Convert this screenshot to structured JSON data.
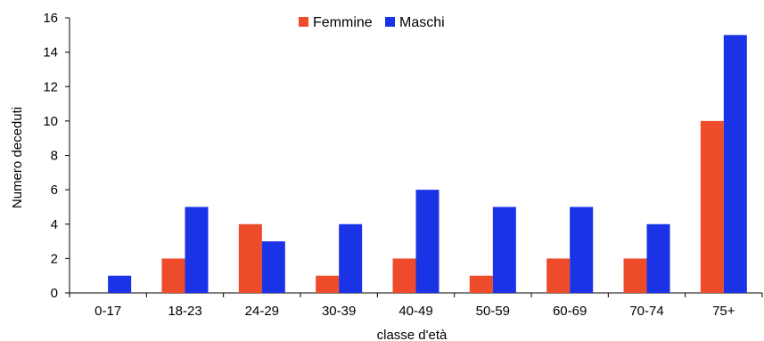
{
  "chart_data": {
    "type": "bar",
    "title": "",
    "xlabel": "classe d'età",
    "ylabel": "Numero deceduti",
    "categories": [
      "0-17",
      "18-23",
      "24-29",
      "30-39",
      "40-49",
      "50-59",
      "60-69",
      "70-74",
      "75+"
    ],
    "series": [
      {
        "name": "Femmine",
        "values": [
          0,
          2,
          4,
          1,
          2,
          1,
          2,
          2,
          10
        ],
        "color": "#ee4b2b"
      },
      {
        "name": "Maschi",
        "values": [
          1,
          5,
          3,
          4,
          6,
          5,
          5,
          4,
          15
        ],
        "color": "#1a33e6"
      }
    ],
    "ylim": [
      0,
      16
    ],
    "yticks": [
      "0",
      "2",
      "4",
      "6",
      "8",
      "10",
      "12",
      "14",
      "16"
    ],
    "grid": false,
    "legend_position": "top-center"
  }
}
